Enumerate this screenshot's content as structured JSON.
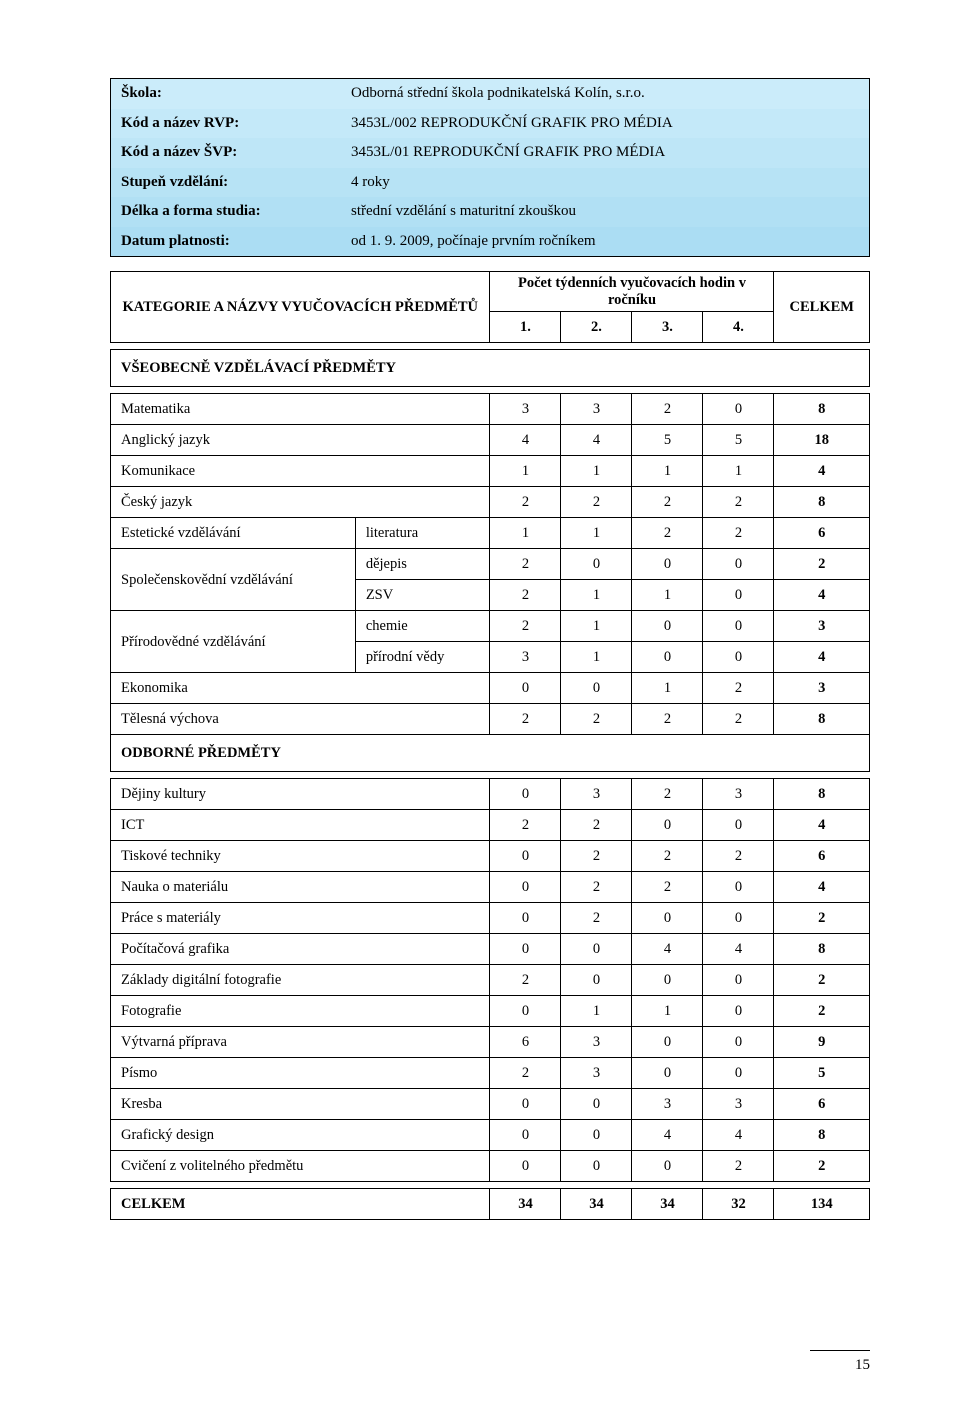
{
  "info": {
    "rows": [
      {
        "label": "Škola:",
        "value": "Odborná střední škola podnikatelská Kolín, s.r.o."
      },
      {
        "label": "Kód a název RVP:",
        "value": "3453L/002 REPRODUKČNÍ GRAFIK PRO MÉDIA"
      },
      {
        "label": "Kód a název ŠVP:",
        "value": "3453L/01 REPRODUKČNÍ GRAFIK PRO MÉDIA"
      },
      {
        "label": "Stupeň vzdělání:",
        "value": "4 roky"
      },
      {
        "label": "Délka a forma studia:",
        "value": "střední vzdělání s maturitní zkouškou"
      },
      {
        "label": "Datum platnosti:",
        "value": "od 1. 9. 2009, počínaje prvním ročníkem"
      }
    ]
  },
  "header": {
    "main": "KATEGORIE A NÁZVY VYUČOVACÍCH PŘEDMĚTŮ",
    "group": "Počet týdenních vyučovacích hodin v ročníku",
    "nums": [
      "1.",
      "2.",
      "3.",
      "4."
    ],
    "total": "CELKEM"
  },
  "sections": [
    {
      "title": "VŠEOBECNĚ VZDĚLÁVACÍ PŘEDMĚTY",
      "rows": [
        {
          "label": "Matematika",
          "sub": "",
          "v": [
            3,
            3,
            2,
            0
          ],
          "t": 8,
          "bold": true
        },
        {
          "label": "Anglický jazyk",
          "sub": "",
          "v": [
            4,
            4,
            5,
            5
          ],
          "t": 18,
          "bold": true
        },
        {
          "label": "Komunikace",
          "sub": "",
          "v": [
            1,
            1,
            1,
            1
          ],
          "t": 4,
          "bold": true
        },
        {
          "label": "Český jazyk",
          "sub": "",
          "v": [
            2,
            2,
            2,
            2
          ],
          "t": 8,
          "bold": true
        },
        {
          "label": "Estetické vzdělávání",
          "sub": "literatura",
          "v": [
            1,
            1,
            2,
            2
          ],
          "t": 6,
          "bold": true
        },
        {
          "label": "Společenskovědní vzdělávání",
          "rowspan": 2,
          "sub": "dějepis",
          "v": [
            2,
            0,
            0,
            0
          ],
          "t": 2,
          "bold": true
        },
        {
          "label": "",
          "sub": "ZSV",
          "v": [
            2,
            1,
            1,
            0
          ],
          "t": 4,
          "bold": true,
          "skipLabel": true
        },
        {
          "label": "Přírodovědné vzdělávání",
          "rowspan": 2,
          "sub": "chemie",
          "v": [
            2,
            1,
            0,
            0
          ],
          "t": 3,
          "bold": true
        },
        {
          "label": "",
          "sub": "přírodní vědy",
          "v": [
            3,
            1,
            0,
            0
          ],
          "t": 4,
          "bold": true,
          "skipLabel": true
        },
        {
          "label": "Ekonomika",
          "sub": "",
          "v": [
            0,
            0,
            1,
            2
          ],
          "t": 3,
          "bold": true
        },
        {
          "label": "Tělesná výchova",
          "sub": "",
          "v": [
            2,
            2,
            2,
            2
          ],
          "t": 8,
          "bold": true
        }
      ]
    },
    {
      "title": "ODBORNÉ PŘEDMĚTY",
      "rows": [
        {
          "label": "Dějiny kultury",
          "sub": "",
          "v": [
            0,
            3,
            2,
            3
          ],
          "t": 8,
          "bold": true
        },
        {
          "label": "ICT",
          "sub": "",
          "v": [
            2,
            2,
            0,
            0
          ],
          "t": 4,
          "bold": true
        },
        {
          "label": "Tiskové techniky",
          "sub": "",
          "v": [
            0,
            2,
            2,
            2
          ],
          "t": 6,
          "bold": true
        },
        {
          "label": "Nauka o materiálu",
          "sub": "",
          "v": [
            0,
            2,
            2,
            0
          ],
          "t": 4,
          "bold": true
        },
        {
          "label": "Práce s materiály",
          "sub": "",
          "v": [
            0,
            2,
            0,
            0
          ],
          "t": 2,
          "bold": true
        },
        {
          "label": "Počítačová grafika",
          "sub": "",
          "v": [
            0,
            0,
            4,
            4
          ],
          "t": 8,
          "bold": true
        },
        {
          "label": "Základy digitální fotografie",
          "sub": "",
          "v": [
            2,
            0,
            0,
            0
          ],
          "t": 2,
          "bold": true
        },
        {
          "label": "Fotografie",
          "sub": "",
          "v": [
            0,
            1,
            1,
            0
          ],
          "t": 2,
          "bold": true
        },
        {
          "label": "Výtvarná příprava",
          "sub": "",
          "v": [
            6,
            3,
            0,
            0
          ],
          "t": 9,
          "bold": true
        },
        {
          "label": "Písmo",
          "sub": "",
          "v": [
            2,
            3,
            0,
            0
          ],
          "t": 5,
          "bold": true
        },
        {
          "label": "Kresba",
          "sub": "",
          "v": [
            0,
            0,
            3,
            3
          ],
          "t": 6,
          "bold": true
        },
        {
          "label": "Grafický design",
          "sub": "",
          "v": [
            0,
            0,
            4,
            4
          ],
          "t": 8,
          "bold": true
        },
        {
          "label": "Cvičení z volitelného předmětu",
          "sub": "",
          "v": [
            0,
            0,
            0,
            2
          ],
          "t": 2,
          "bold": true
        }
      ]
    }
  ],
  "footer": {
    "label": "CELKEM",
    "v": [
      34,
      34,
      34,
      32
    ],
    "t": 134
  },
  "pagenum": "15"
}
